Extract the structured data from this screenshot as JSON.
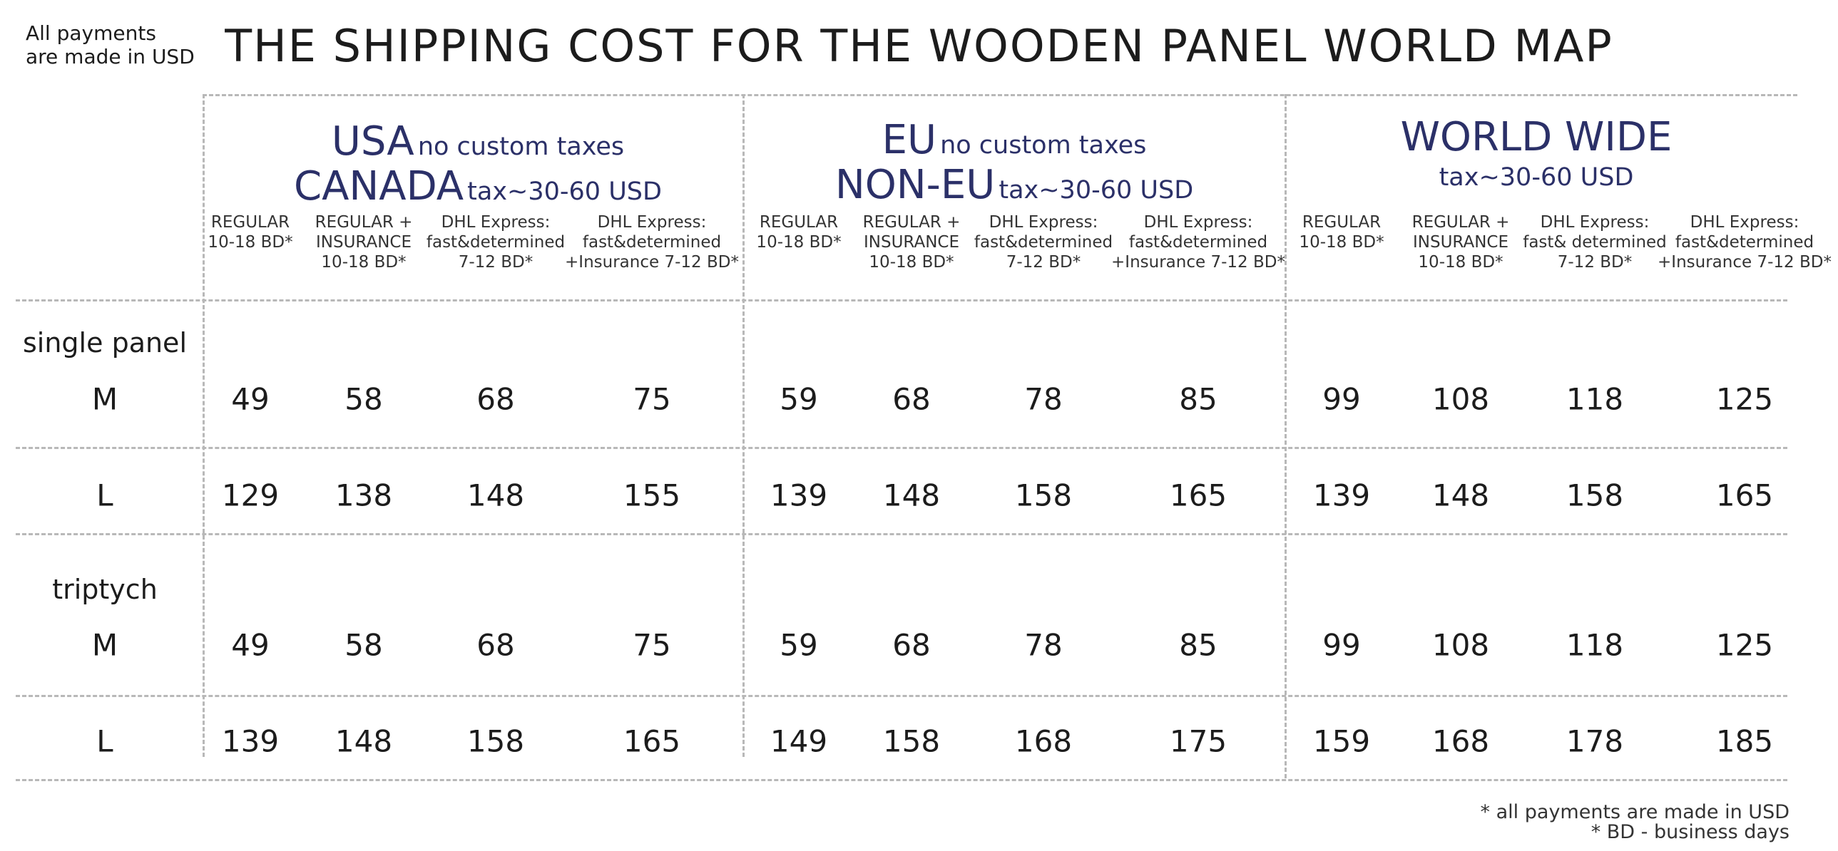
{
  "note_top_left": [
    "All payments",
    "are made in USD"
  ],
  "title": "THE SHIPPING COST FOR THE WOODEN PANEL WORLD MAP",
  "regions": [
    {
      "line1_big": "USA",
      "line1_small": "no custom taxes",
      "line2_big": "CANADA",
      "line2_small": "tax~30-60 USD"
    },
    {
      "line1_big": "EU",
      "line1_small": "no custom taxes",
      "line2_big": "NON-EU",
      "line2_small": "tax~30-60 USD"
    },
    {
      "line1_big": "WORLD WIDE",
      "line1_small": "",
      "line2_big": "",
      "line2_small": "tax~30-60 USD"
    }
  ],
  "column_headers": [
    [
      [
        "REGULAR",
        "10-18 BD*"
      ],
      [
        "REGULAR  +",
        "INSURANCE",
        "10-18 BD*"
      ],
      [
        "DHL Express:",
        "fast&determined",
        "7-12 BD*"
      ],
      [
        "DHL Express:",
        "fast&determined",
        "+Insurance 7-12 BD*"
      ]
    ],
    [
      [
        "REGULAR",
        "10-18 BD*"
      ],
      [
        "REGULAR  +",
        "INSURANCE",
        "10-18 BD*"
      ],
      [
        "DHL Express:",
        "fast&determined",
        "7-12 BD*"
      ],
      [
        "DHL Express:",
        "fast&determined",
        "+Insurance 7-12 BD*"
      ]
    ],
    [
      [
        "REGULAR",
        "10-18 BD*"
      ],
      [
        "REGULAR  +",
        "INSURANCE",
        "10-18 BD*"
      ],
      [
        "DHL Express:",
        "fast& determined",
        "7-12 BD*"
      ],
      [
        "DHL Express:",
        "fast&determined",
        "+Insurance 7-12 BD*"
      ]
    ]
  ],
  "groups": [
    {
      "name": "single panel",
      "rows": [
        {
          "size": "M",
          "prices": [
            "49",
            "58",
            "68",
            "75",
            "59",
            "68",
            "78",
            "85",
            "99",
            "108",
            "118",
            "125"
          ]
        },
        {
          "size": "L",
          "prices": [
            "129",
            "138",
            "148",
            "155",
            "139",
            "148",
            "158",
            "165",
            "139",
            "148",
            "158",
            "165"
          ]
        }
      ]
    },
    {
      "name": "triptych",
      "rows": [
        {
          "size": "M",
          "prices": [
            "49",
            "58",
            "68",
            "75",
            "59",
            "68",
            "78",
            "85",
            "99",
            "108",
            "118",
            "125"
          ]
        },
        {
          "size": "L",
          "prices": [
            "139",
            "148",
            "158",
            "165",
            "149",
            "158",
            "168",
            "175",
            "159",
            "168",
            "178",
            "185"
          ]
        }
      ]
    }
  ],
  "footnotes": [
    "* all payments are made in USD",
    "* BD - business days"
  ]
}
